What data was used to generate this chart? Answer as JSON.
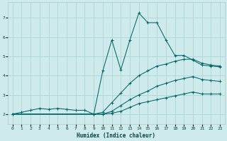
{
  "xlabel": "Humidex (Indice chaleur)",
  "xlim": [
    -0.5,
    23.5
  ],
  "ylim": [
    1.5,
    7.8
  ],
  "xticks": [
    0,
    1,
    2,
    3,
    4,
    5,
    6,
    7,
    8,
    9,
    10,
    11,
    12,
    13,
    14,
    15,
    16,
    17,
    18,
    19,
    20,
    21,
    22,
    23
  ],
  "yticks": [
    2,
    3,
    4,
    5,
    6,
    7
  ],
  "bg_color": "#ceeaea",
  "line_color": "#006868",
  "grid_color": "#b0d8d8",
  "lines": [
    {
      "x": [
        0,
        1,
        2,
        3,
        4,
        5,
        6,
        7,
        8,
        9,
        10,
        11,
        12,
        13,
        14,
        15,
        16,
        17,
        18,
        19,
        20,
        21,
        22,
        23
      ],
      "y": [
        2.0,
        2.1,
        2.2,
        2.3,
        2.25,
        2.3,
        2.25,
        2.2,
        2.2,
        2.0,
        4.25,
        5.85,
        4.3,
        5.85,
        7.25,
        6.75,
        6.75,
        5.85,
        5.05,
        5.05,
        4.8,
        4.55,
        4.5,
        4.45
      ]
    },
    {
      "x": [
        0,
        9,
        10,
        11,
        12,
        13,
        14,
        15,
        16,
        17,
        18,
        19,
        20,
        21,
        22,
        23
      ],
      "y": [
        2.0,
        2.0,
        2.1,
        2.6,
        3.1,
        3.6,
        4.0,
        4.25,
        4.5,
        4.6,
        4.75,
        4.85,
        4.85,
        4.65,
        4.55,
        4.5
      ]
    },
    {
      "x": [
        0,
        9,
        10,
        11,
        12,
        13,
        14,
        15,
        16,
        17,
        18,
        19,
        20,
        21,
        22,
        23
      ],
      "y": [
        2.0,
        2.0,
        2.0,
        2.15,
        2.45,
        2.75,
        3.0,
        3.2,
        3.45,
        3.6,
        3.75,
        3.85,
        3.95,
        3.8,
        3.75,
        3.7
      ]
    },
    {
      "x": [
        0,
        9,
        10,
        11,
        12,
        13,
        14,
        15,
        16,
        17,
        18,
        19,
        20,
        21,
        22,
        23
      ],
      "y": [
        2.0,
        2.0,
        2.0,
        2.05,
        2.15,
        2.35,
        2.55,
        2.65,
        2.75,
        2.85,
        2.95,
        3.05,
        3.15,
        3.05,
        3.05,
        3.05
      ]
    }
  ]
}
